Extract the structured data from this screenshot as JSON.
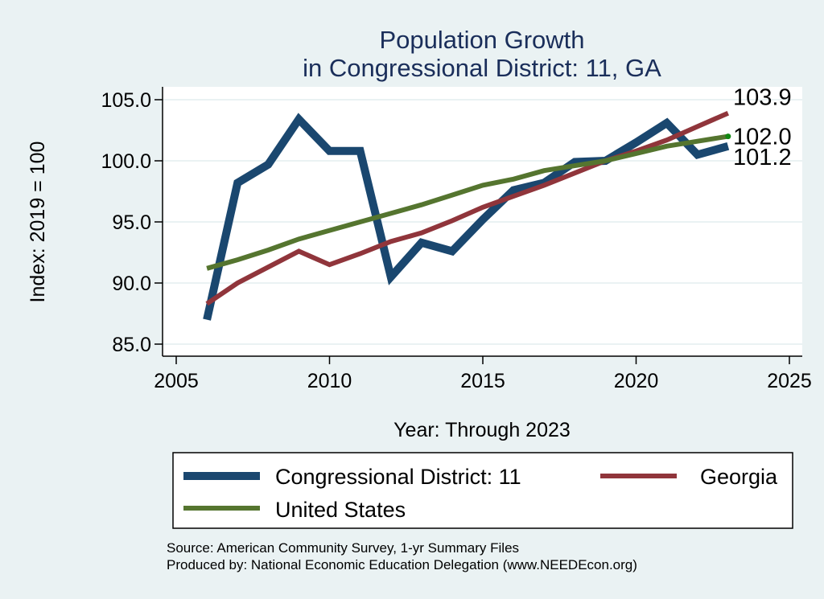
{
  "chart_data": {
    "type": "line",
    "title": "Population Growth",
    "subtitle": "in Congressional District: 11, GA",
    "xlabel": "Year: Through 2023",
    "ylabel": "Index: 2019 = 100",
    "xlim": [
      2005,
      2025
    ],
    "ylim": [
      85,
      105
    ],
    "x_ticks": [
      2005,
      2010,
      2015,
      2020,
      2025
    ],
    "x_tick_labels": [
      "2005",
      "2010",
      "2015",
      "2020",
      "2025"
    ],
    "y_ticks": [
      85,
      90,
      95,
      100,
      105
    ],
    "y_tick_labels": [
      "85.0",
      "90.0",
      "95.0",
      "100.0",
      "105.0"
    ],
    "grid": true,
    "legend_position": "bottom",
    "x": [
      2006,
      2007,
      2008,
      2009,
      2010,
      2011,
      2012,
      2013,
      2014,
      2015,
      2016,
      2017,
      2018,
      2019,
      2020,
      2021,
      2022,
      2023
    ],
    "series": [
      {
        "name": "Congressional District: 11",
        "color": "#1a476f",
        "values": [
          87.0,
          98.2,
          99.7,
          103.4,
          100.8,
          100.8,
          90.5,
          93.3,
          92.6,
          95.2,
          97.6,
          98.2,
          99.9,
          100.0,
          101.5,
          103.1,
          100.5,
          101.2
        ],
        "end_label": "101.2"
      },
      {
        "name": "Georgia",
        "color": "#90353b",
        "values": [
          88.3,
          90.0,
          91.3,
          92.6,
          91.5,
          92.4,
          93.4,
          94.1,
          95.1,
          96.2,
          97.1,
          98.0,
          99.0,
          100.0,
          100.8,
          101.7,
          102.8,
          103.9
        ],
        "end_label": "103.9"
      },
      {
        "name": "United States",
        "color": "#55752f",
        "values": [
          91.2,
          91.9,
          92.7,
          93.6,
          94.3,
          95.0,
          95.7,
          96.4,
          97.2,
          98.0,
          98.5,
          99.2,
          99.6,
          100.0,
          100.6,
          101.2,
          101.6,
          102.0
        ],
        "end_label": "102.0"
      }
    ],
    "legend": [
      "Congressional District: 11",
      "Georgia",
      "United States"
    ],
    "notes": [
      "Source: American Community Survey, 1-yr Summary Files",
      "Produced by: National Economic Education Delegation (www.NEEDEcon.org)"
    ]
  }
}
